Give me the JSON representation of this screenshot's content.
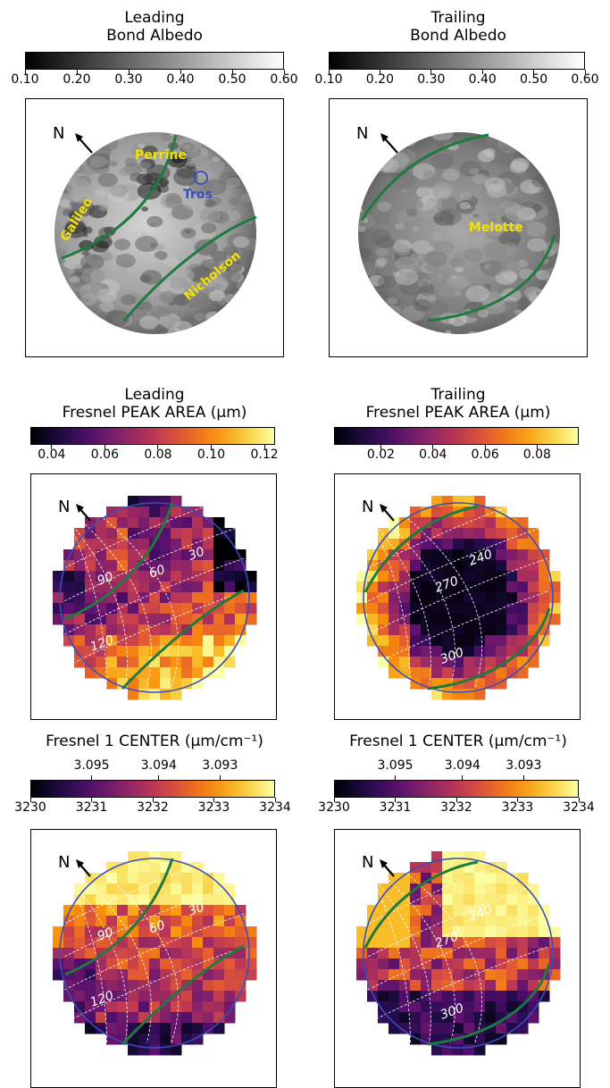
{
  "chart_data": [
    {
      "type": "heatmap",
      "id": "albedo-leading",
      "title_line1": "Leading",
      "title_line2": "Bond Albedo",
      "colormap": "gray",
      "clim": [
        0.1,
        0.6
      ],
      "ticks": [
        "0.10",
        "0.20",
        "0.30",
        "0.40",
        "0.50",
        "0.60"
      ],
      "tick_values": [
        0.1,
        0.2,
        0.3,
        0.4,
        0.5,
        0.6
      ],
      "north_label": "N",
      "feature_labels": [
        {
          "text": "Perrine",
          "color": "#f2e200"
        },
        {
          "text": "Tros",
          "color": "#3b4fb8"
        },
        {
          "text": "Galileo",
          "color": "#f2e200"
        },
        {
          "text": "Nicholson",
          "color": "#f2e200"
        }
      ]
    },
    {
      "type": "heatmap",
      "id": "albedo-trailing",
      "title_line1": "Trailing",
      "title_line2": "Bond Albedo",
      "colormap": "gray",
      "clim": [
        0.1,
        0.6
      ],
      "ticks": [
        "0.10",
        "0.20",
        "0.30",
        "0.40",
        "0.50",
        "0.60"
      ],
      "tick_values": [
        0.1,
        0.2,
        0.3,
        0.4,
        0.5,
        0.6
      ],
      "north_label": "N",
      "feature_labels": [
        {
          "text": "Melotte",
          "color": "#f2e200"
        }
      ]
    },
    {
      "type": "heatmap",
      "id": "area-leading",
      "title_line1": "Leading",
      "title_line2": "Fresnel PEAK AREA  (μm)",
      "colormap": "inferno",
      "clim": [
        0.032,
        0.124
      ],
      "ticks": [
        "0.04",
        "0.06",
        "0.08",
        "0.10",
        "0.12"
      ],
      "tick_values": [
        0.04,
        0.06,
        0.08,
        0.1,
        0.12
      ],
      "north_label": "N",
      "longitude_labels": [
        "30",
        "60",
        "90",
        "120"
      ]
    },
    {
      "type": "heatmap",
      "id": "area-trailing",
      "title_line1": "Trailing",
      "title_line2": "Fresnel PEAK AREA  (μm)",
      "colormap": "inferno",
      "clim": [
        0.002,
        0.096
      ],
      "ticks": [
        "0.02",
        "0.04",
        "0.06",
        "0.08"
      ],
      "tick_values": [
        0.02,
        0.04,
        0.06,
        0.08
      ],
      "north_label": "N",
      "longitude_labels": [
        "240",
        "270",
        "300"
      ]
    },
    {
      "type": "heatmap",
      "id": "center-leading",
      "title_line1": "Fresnel 1 CENTER (μm/cm⁻¹)",
      "top_ticks": [
        "3.095",
        "3.094",
        "3.093"
      ],
      "top_tick_values": [
        3231.0,
        3232.1,
        3233.1
      ],
      "colormap": "inferno",
      "clim": [
        3230,
        3234
      ],
      "ticks": [
        "3230",
        "3231",
        "3232",
        "3233",
        "3234"
      ],
      "tick_values": [
        3230,
        3231,
        3232,
        3233,
        3234
      ],
      "north_label": "N",
      "longitude_labels": [
        "30",
        "60",
        "90",
        "120"
      ]
    },
    {
      "type": "heatmap",
      "id": "center-trailing",
      "title_line1": "Fresnel 1 CENTER (μm/cm⁻¹)",
      "top_ticks": [
        "3.095",
        "3.094",
        "3.093"
      ],
      "top_tick_values": [
        3231.0,
        3232.1,
        3233.1
      ],
      "colormap": "inferno",
      "clim": [
        3230,
        3234
      ],
      "ticks": [
        "3230",
        "3231",
        "3232",
        "3233",
        "3234"
      ],
      "tick_values": [
        3230,
        3231,
        3232,
        3233,
        3234
      ],
      "north_label": "N",
      "longitude_labels": [
        "240",
        "270",
        "300"
      ]
    }
  ]
}
